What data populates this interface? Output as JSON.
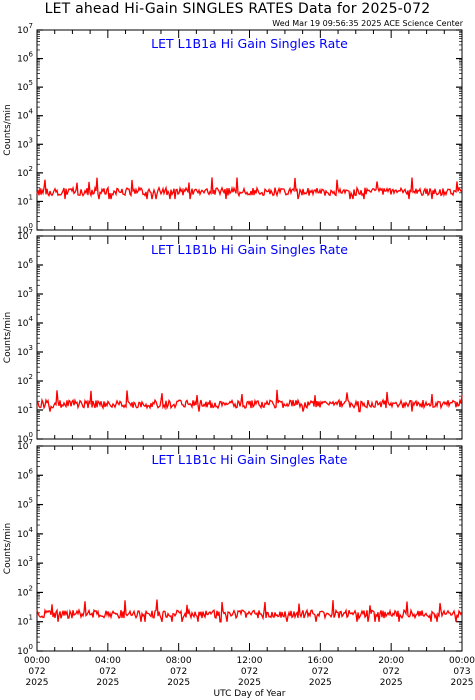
{
  "header": {
    "title": "LET ahead Hi-Gain SINGLES RATES Data for 2025-072",
    "timestamp": "Wed Mar 19 09:56:35 2025 ACE Science Center"
  },
  "colors": {
    "series": "#ff0000",
    "panel_title": "#0000ff",
    "axis": "#000000"
  },
  "chart_data": [
    {
      "type": "line",
      "title": "LET L1B1a Hi Gain Singles Rate",
      "ylabel": "Counts/min",
      "xlabel": "",
      "yscale": "log",
      "ylim": [
        1,
        10000000
      ],
      "yticks": [
        {
          "base": "10",
          "exp": "0",
          "value": 1
        },
        {
          "base": "10",
          "exp": "1",
          "value": 10
        },
        {
          "base": "10",
          "exp": "2",
          "value": 100
        },
        {
          "base": "10",
          "exp": "3",
          "value": 1000
        },
        {
          "base": "10",
          "exp": "4",
          "value": 10000
        },
        {
          "base": "10",
          "exp": "5",
          "value": 100000
        },
        {
          "base": "10",
          "exp": "6",
          "value": 1000000
        },
        {
          "base": "10",
          "exp": "7",
          "value": 10000000
        }
      ],
      "series": [
        {
          "baseline": 22,
          "spikes": [
            8,
            40,
            52,
            60,
            95,
            110,
            152,
            175,
            200,
            258,
            300,
            340,
            375,
            420,
            440
          ]
        }
      ],
      "grid": false
    },
    {
      "type": "line",
      "title": "LET L1B1b Hi Gain Singles Rate",
      "ylabel": "Counts/min",
      "xlabel": "",
      "yscale": "log",
      "ylim": [
        1,
        10000000
      ],
      "yticks": [
        {
          "base": "10",
          "exp": "0",
          "value": 1
        },
        {
          "base": "10",
          "exp": "1",
          "value": 10
        },
        {
          "base": "10",
          "exp": "2",
          "value": 100
        },
        {
          "base": "10",
          "exp": "3",
          "value": 1000
        },
        {
          "base": "10",
          "exp": "4",
          "value": 10000
        },
        {
          "base": "10",
          "exp": "5",
          "value": 100000
        },
        {
          "base": "10",
          "exp": "6",
          "value": 1000000
        },
        {
          "base": "10",
          "exp": "7",
          "value": 10000000
        }
      ],
      "series": [
        {
          "baseline": 16,
          "spikes": [
            20,
            54,
            90,
            125,
            160,
            205,
            240,
            278,
            310,
            350,
            395,
            425,
            452
          ]
        }
      ],
      "grid": false
    },
    {
      "type": "line",
      "title": "LET L1B1c Hi Gain Singles Rate",
      "ylabel": "Counts/min",
      "xlabel": "UTC Day of Year",
      "yscale": "log",
      "ylim": [
        1,
        10000000
      ],
      "yticks": [
        {
          "base": "10",
          "exp": "0",
          "value": 1
        },
        {
          "base": "10",
          "exp": "1",
          "value": 10
        },
        {
          "base": "10",
          "exp": "2",
          "value": 100
        },
        {
          "base": "10",
          "exp": "3",
          "value": 1000
        },
        {
          "base": "10",
          "exp": "4",
          "value": 10000
        },
        {
          "base": "10",
          "exp": "5",
          "value": 100000
        },
        {
          "base": "10",
          "exp": "6",
          "value": 1000000
        },
        {
          "base": "10",
          "exp": "7",
          "value": 10000000
        }
      ],
      "xticks": [
        {
          "time": "00:00",
          "doy": "072",
          "year": "2025"
        },
        {
          "time": "04:00",
          "doy": "072",
          "year": "2025"
        },
        {
          "time": "08:00",
          "doy": "072",
          "year": "2025"
        },
        {
          "time": "12:00",
          "doy": "072",
          "year": "2025"
        },
        {
          "time": "16:00",
          "doy": "072",
          "year": "2025"
        },
        {
          "time": "20:00",
          "doy": "072",
          "year": "2025"
        },
        {
          "time": "00:00",
          "doy": "073",
          "year": "2025"
        }
      ],
      "series": [
        {
          "baseline": 18,
          "spikes": [
            15,
            48,
            88,
            120,
            150,
            185,
            228,
            262,
            296,
            333,
            370,
            403,
            438,
            455
          ]
        }
      ],
      "grid": false
    }
  ]
}
